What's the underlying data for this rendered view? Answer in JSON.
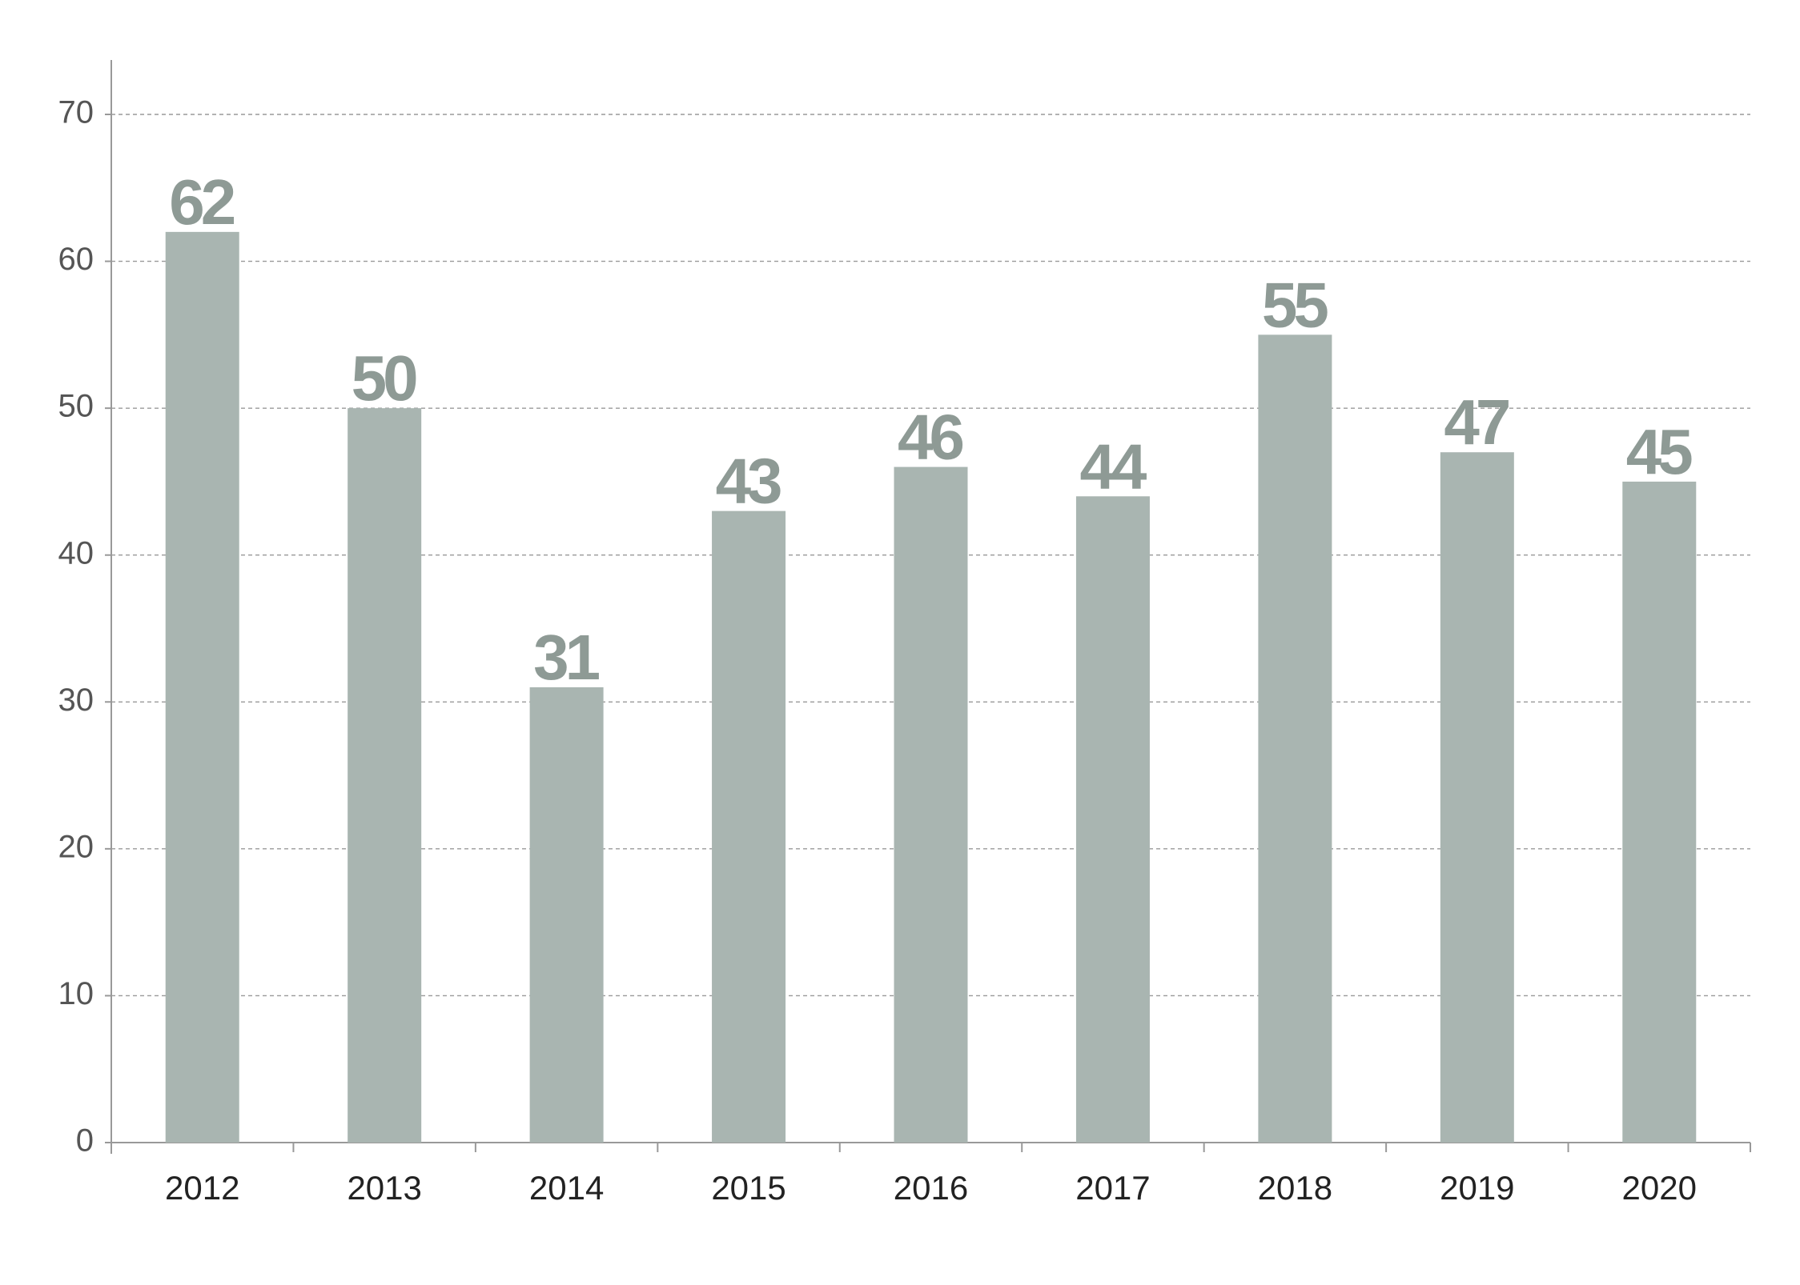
{
  "chart_data": {
    "type": "bar",
    "categories": [
      "2012",
      "2013",
      "2014",
      "2015",
      "2016",
      "2017",
      "2018",
      "2019",
      "2020"
    ],
    "values": [
      62,
      50,
      31,
      43,
      46,
      44,
      55,
      47,
      45
    ],
    "color": "#a9b5b1",
    "ylim": [
      0,
      70
    ],
    "yticks": [
      0,
      10,
      20,
      30,
      40,
      50,
      60,
      70
    ],
    "grid": true
  }
}
